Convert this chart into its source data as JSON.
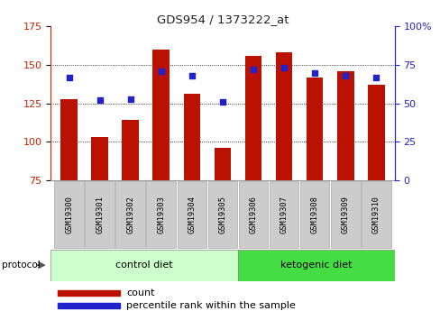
{
  "title": "GDS954 / 1373222_at",
  "samples": [
    "GSM19300",
    "GSM19301",
    "GSM19302",
    "GSM19303",
    "GSM19304",
    "GSM19305",
    "GSM19306",
    "GSM19307",
    "GSM19308",
    "GSM19309",
    "GSM19310"
  ],
  "counts": [
    128,
    103,
    114,
    160,
    131,
    96,
    156,
    158,
    142,
    146,
    137
  ],
  "percentiles": [
    67,
    52,
    53,
    71,
    68,
    51,
    72,
    73,
    70,
    68,
    67
  ],
  "ylim_left": [
    75,
    175
  ],
  "ylim_right": [
    0,
    100
  ],
  "yticks_left": [
    75,
    100,
    125,
    150,
    175
  ],
  "yticks_right": [
    0,
    25,
    50,
    75,
    100
  ],
  "bar_color": "#bb1100",
  "dot_color": "#2222cc",
  "bar_width": 0.55,
  "control_label": "control diet",
  "ketogenic_label": "ketogenic diet",
  "protocol_label": "protocol",
  "legend_count": "count",
  "legend_percentile": "percentile rank within the sample",
  "ylabel_left_color": "#cc2200",
  "ylabel_right_color": "#2222cc",
  "title_color": "#222222",
  "control_bg": "#ccffcc",
  "ketogenic_bg": "#44dd44",
  "tick_bg": "#cccccc",
  "tick_edge": "#aaaaaa",
  "grid_yticks": [
    100,
    125,
    150
  ]
}
